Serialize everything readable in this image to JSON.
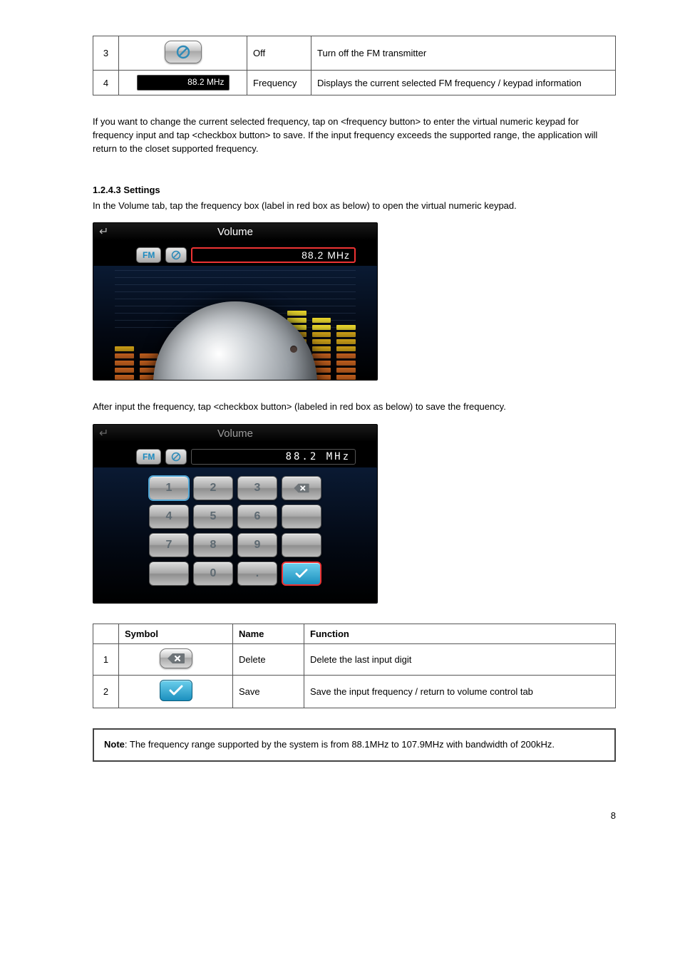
{
  "toptable": {
    "rows": [
      {
        "num": "3",
        "name": "Off",
        "desc": "Turn off the FM transmitter"
      },
      {
        "num": "4",
        "name": "Frequency",
        "desc": "Displays the current selected FM frequency / keypad information"
      }
    ],
    "freq_display": "88.2 MHz"
  },
  "paragraph_after_table": "If you want to change the current selected frequency, tap on <frequency button> to enter the virtual numeric keypad for frequency input and tap <checkbox button> to save. If the input frequency exceeds the supported range, the application will return to the closet supported frequency.",
  "section_heading": "1.2.4.3 Settings",
  "section_intro": "In the Volume tab, tap the frequency box (label in red box as below) to open the virtual numeric keypad.",
  "screenshot1": {
    "title": "Volume",
    "fm_label": "FM",
    "frequency": "88.2 MHz",
    "back_glyph": "↵",
    "eq_levels": [
      5,
      4,
      5,
      4,
      5,
      6,
      9,
      10,
      9,
      8
    ],
    "eq_max": 10,
    "eq_palette_low": "#c8621e",
    "eq_palette_mid": "#d5a516",
    "eq_palette_hi": "#f7e22b"
  },
  "keypad_caption": "After input the frequency, tap <checkbox button> (labeled in red box as below) to save the frequency.",
  "screenshot2": {
    "title": "Volume",
    "fm_label": "FM",
    "frequency": "88.2  MHz",
    "back_glyph": "↵",
    "keys": [
      [
        "1",
        "2",
        "3",
        "⌫"
      ],
      [
        "4",
        "5",
        "6",
        ""
      ],
      [
        "7",
        "8",
        "9",
        ""
      ],
      [
        "",
        "0",
        ".",
        "✓"
      ]
    ],
    "selected_key": "1",
    "highlighted_key": "✓"
  },
  "midtable": {
    "head": [
      "Symbol",
      "Name",
      "Function"
    ],
    "rows": [
      {
        "name": "Delete",
        "desc": "Delete the last input digit"
      },
      {
        "name": "Save",
        "desc": "Save the input frequency / return to volume control tab"
      }
    ]
  },
  "note": {
    "label": "Note",
    "text": "The frequency range supported by the system is from 88.1MHz to 107.9MHz with bandwidth of 200kHz."
  },
  "page_number": "8",
  "colors": {
    "prohibit": "#2f8bb8",
    "check_bg_top": "#6bcfec",
    "check_bg_bot": "#1b8fbe"
  }
}
